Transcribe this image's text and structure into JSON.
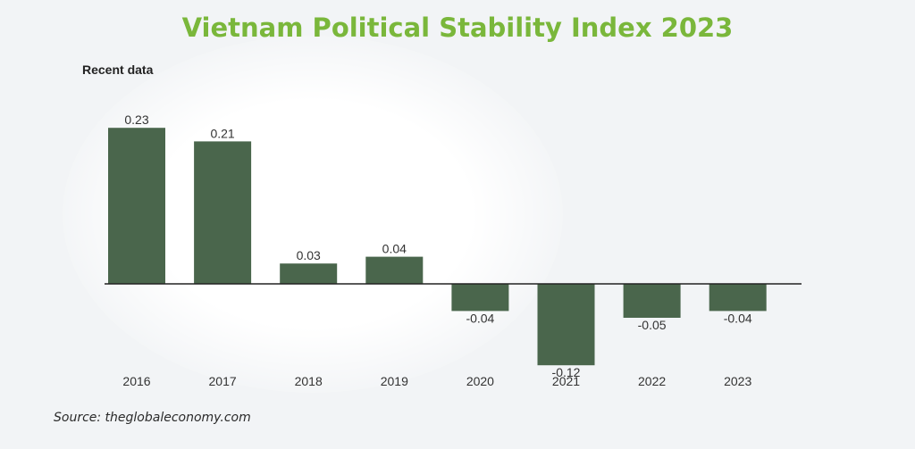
{
  "title": "Vietnam Political Stability Index 2023",
  "subtitle": "Recent data",
  "source": "Source: theglobaleconomy.com",
  "colors": {
    "title": "#7ab73b",
    "bar": "#4a664c",
    "baseline": "#222222"
  },
  "chart_data": {
    "type": "bar",
    "categories": [
      "2016",
      "2017",
      "2018",
      "2019",
      "2020",
      "2021",
      "2022",
      "2023"
    ],
    "values": [
      0.23,
      0.21,
      0.03,
      0.04,
      -0.04,
      -0.12,
      -0.05,
      -0.04
    ],
    "value_labels": [
      "0.23",
      "0.21",
      "0.03",
      "0.04",
      "-0.04",
      "-0.12",
      "-0.05",
      "-0.04"
    ],
    "title": "Vietnam Political Stability Index 2023",
    "subtitle": "Recent data",
    "xlabel": "",
    "ylabel": "",
    "ylim": [
      -0.12,
      0.23
    ],
    "grid": false,
    "legend": "none"
  }
}
